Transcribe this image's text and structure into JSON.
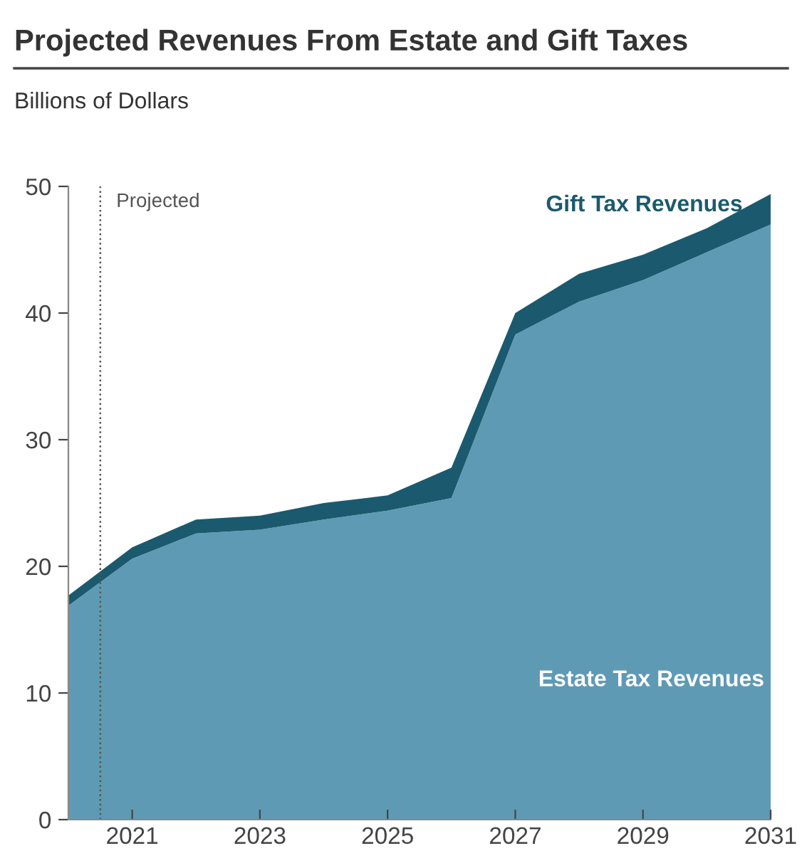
{
  "chart_data": {
    "type": "area",
    "title": "Projected Revenues From Estate and Gift Taxes",
    "subtitle": "Billions of Dollars",
    "x": [
      2020,
      2021,
      2022,
      2023,
      2024,
      2025,
      2026,
      2027,
      2028,
      2029,
      2030,
      2031
    ],
    "stacked": true,
    "series": [
      {
        "name": "Estate Tax Revenues",
        "color": "#5f9ab5",
        "values": [
          16.9,
          20.6,
          22.6,
          22.9,
          23.7,
          24.4,
          25.4,
          38.3,
          40.9,
          42.6,
          44.8,
          47.0
        ]
      },
      {
        "name": "Gift Tax Revenues",
        "color": "#1b5a6e",
        "values": [
          0.8,
          0.9,
          1.1,
          1.1,
          1.3,
          1.2,
          2.4,
          1.7,
          2.2,
          2.0,
          1.9,
          2.4
        ]
      }
    ],
    "xlim": [
      2020,
      2031
    ],
    "ylim": [
      0,
      50
    ],
    "xticks": [
      2021,
      2023,
      2025,
      2027,
      2029,
      2031
    ],
    "yticks": [
      0,
      10,
      20,
      30,
      40,
      50
    ],
    "ref_lines": [
      {
        "axis": "x",
        "value": 2020.5,
        "label": "Projected",
        "color": "#555555",
        "line_style": "dotted"
      }
    ],
    "grid": false,
    "legend": false
  }
}
